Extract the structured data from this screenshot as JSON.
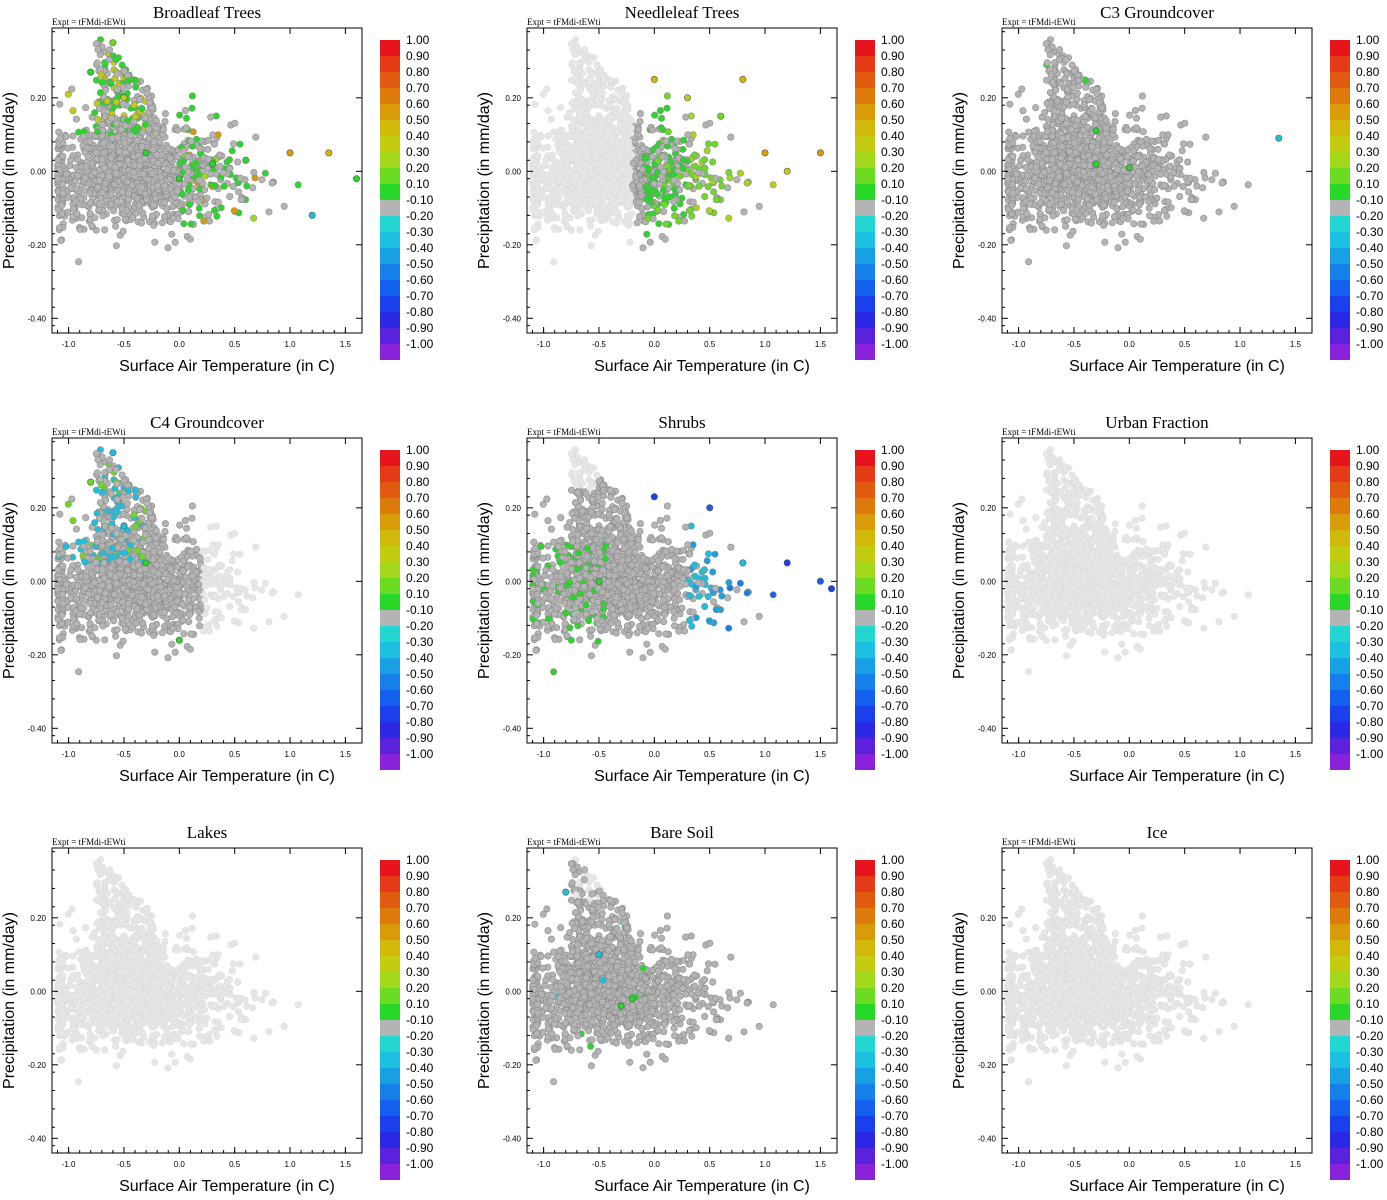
{
  "figure": {
    "expt_label": "Expt = tFMdi-tEWti",
    "xlabel": "Surface Air Temperature (in C)",
    "ylabel": "Precipitation (in mm/day)",
    "x_ticks": [
      "-1.0",
      "-0.5",
      "0.0",
      "0.5",
      "1.0",
      "1.5"
    ],
    "y_ticks": [
      "0.20",
      "0.00",
      "-0.20",
      "-0.40"
    ],
    "colorbar_labels": [
      "1.00",
      "0.90",
      "0.80",
      "0.70",
      "0.60",
      "0.50",
      "0.40",
      "0.30",
      "0.20",
      "0.10",
      "-0.10",
      "-0.20",
      "-0.30",
      "-0.40",
      "-0.50",
      "-0.60",
      "-0.70",
      "-0.80",
      "-0.90",
      "-1.00"
    ],
    "colorbar_colors": [
      "#e8141c",
      "#e53a16",
      "#e25a10",
      "#de7a0c",
      "#d99c08",
      "#d2b808",
      "#c4cc10",
      "#a4d81a",
      "#6cdc22",
      "#28d828",
      "#b4b4b4",
      "#22d6d2",
      "#1cc0e0",
      "#18a0e4",
      "#1680ea",
      "#1460ee",
      "#1a40ee",
      "#2a28e4",
      "#5a22dc",
      "#8a22dc"
    ],
    "missing_color": "#e6e6e6"
  },
  "chart_data": [
    {
      "type": "scatter",
      "title": "Broadleaf Trees",
      "xlim": [
        -1.15,
        1.65
      ],
      "ylim": [
        -0.44,
        0.39
      ],
      "color_value_range": [
        -1.0,
        1.0
      ],
      "pattern": "green",
      "description_points": [
        [
          -0.8,
          0.27,
          0.1
        ],
        [
          -0.6,
          0.35,
          0.2
        ],
        [
          -0.5,
          0.2,
          0.4
        ],
        [
          -0.3,
          0.05,
          0.1
        ],
        [
          0,
          -0.02,
          0.1
        ],
        [
          0.3,
          0.02,
          0.1
        ],
        [
          0.6,
          0.03,
          0.1
        ],
        [
          1.0,
          0.05,
          0.7
        ],
        [
          1.2,
          -0.12,
          -0.2
        ],
        [
          1.35,
          0.05,
          0.5
        ],
        [
          1.6,
          -0.02,
          0.1
        ]
      ]
    },
    {
      "type": "scatter",
      "title": "Needleleaf Trees",
      "xlim": [
        -1.15,
        1.65
      ],
      "ylim": [
        -0.44,
        0.39
      ],
      "color_value_range": [
        -1.0,
        1.0
      ],
      "pattern": "warm",
      "description_points": [
        [
          0,
          0.25,
          0.5
        ],
        [
          0.3,
          0.2,
          0.4
        ],
        [
          0.6,
          0.15,
          0.2
        ],
        [
          0.8,
          0.25,
          0.5
        ],
        [
          1.0,
          0.05,
          0.6
        ],
        [
          1.2,
          0,
          0.4
        ],
        [
          1.5,
          0.05,
          0.7
        ]
      ]
    },
    {
      "type": "scatter",
      "title": "C3 Groundcover",
      "xlim": [
        -1.15,
        1.65
      ],
      "ylim": [
        -0.44,
        0.39
      ],
      "color_value_range": [
        -1.0,
        1.0
      ],
      "pattern": "sparse",
      "description_points": [
        [
          -0.3,
          0.11,
          0.1
        ],
        [
          -0.3,
          0.02,
          0.1
        ],
        [
          0,
          0.01,
          0.1
        ],
        [
          1.35,
          0.09,
          -0.2
        ]
      ]
    },
    {
      "type": "scatter",
      "title": "C4 Groundcover",
      "xlim": [
        -1.15,
        1.65
      ],
      "ylim": [
        -0.44,
        0.39
      ],
      "color_value_range": [
        -1.0,
        1.0
      ],
      "pattern": "cyanleft",
      "description_points": [
        [
          -0.8,
          0.27,
          0.3
        ],
        [
          -0.6,
          0.35,
          -0.2
        ],
        [
          -0.5,
          0.15,
          -0.3
        ],
        [
          -0.3,
          0.05,
          0.1
        ],
        [
          0,
          -0.16,
          0.1
        ]
      ]
    },
    {
      "type": "scatter",
      "title": "Shrubs",
      "xlim": [
        -1.15,
        1.65
      ],
      "ylim": [
        -0.44,
        0.39
      ],
      "color_value_range": [
        -1.0,
        1.0
      ],
      "pattern": "blue",
      "description_points": [
        [
          -0.5,
          0.0,
          0.1
        ],
        [
          0,
          0.23,
          -0.6
        ],
        [
          0.5,
          0.2,
          -0.5
        ],
        [
          0.8,
          0.05,
          -0.3
        ],
        [
          1.2,
          0.05,
          -0.7
        ],
        [
          1.5,
          0.0,
          -0.5
        ],
        [
          1.6,
          -0.02,
          -0.7
        ]
      ]
    },
    {
      "type": "scatter",
      "title": "Urban Fraction",
      "xlim": [
        -1.15,
        1.65
      ],
      "ylim": [
        -0.44,
        0.39
      ],
      "color_value_range": [
        -1.0,
        1.0
      ],
      "pattern": "none",
      "description_points": []
    },
    {
      "type": "scatter",
      "title": "Lakes",
      "xlim": [
        -1.15,
        1.65
      ],
      "ylim": [
        -0.44,
        0.39
      ],
      "color_value_range": [
        -1.0,
        1.0
      ],
      "pattern": "none",
      "description_points": []
    },
    {
      "type": "scatter",
      "title": "Bare Soil",
      "xlim": [
        -1.15,
        1.65
      ],
      "ylim": [
        -0.44,
        0.39
      ],
      "color_value_range": [
        -1.0,
        1.0
      ],
      "pattern": "baresoil",
      "description_points": [
        [
          -0.8,
          0.27,
          -0.2
        ],
        [
          -0.5,
          0.1,
          -0.2
        ],
        [
          -0.3,
          -0.04,
          0.1
        ],
        [
          -0.2,
          -0.02,
          0.1
        ]
      ]
    },
    {
      "type": "scatter",
      "title": "Ice",
      "xlim": [
        -1.15,
        1.65
      ],
      "ylim": [
        -0.44,
        0.39
      ],
      "color_value_range": [
        -1.0,
        1.0
      ],
      "pattern": "none",
      "description_points": []
    }
  ]
}
